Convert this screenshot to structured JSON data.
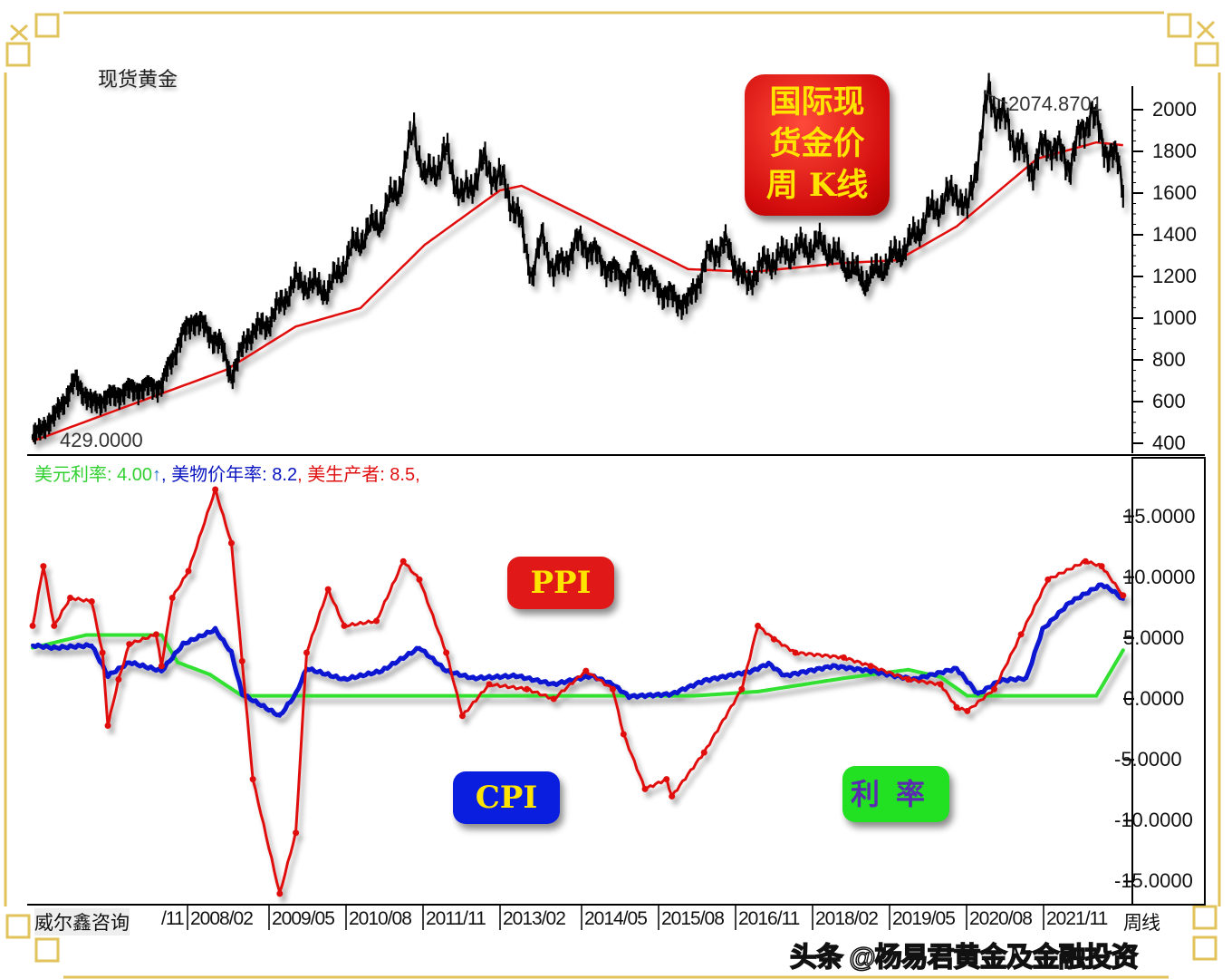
{
  "header": {
    "title": "现货黄金",
    "provider": "威尔鑫咨询",
    "watermark": "头条 @杨易君黄金及金融投资"
  },
  "labels": {
    "title_box": [
      "国际现",
      "货金价",
      "周 K线"
    ],
    "ppi_box": "PPI",
    "cpi_box": "CPI",
    "rate_box": "利率"
  },
  "legend": {
    "rate": "美元利率: 4.00",
    "rate_arrow": "↑",
    "cpi": ", 美物价年率: 8.2",
    "ppi": ", 美生产者: 8.5,"
  },
  "colors": {
    "price": "#000000",
    "ma": "#e01010",
    "rate": "#33e033",
    "cpi": "#0a14d0",
    "ppi": "#e01010",
    "frame_gold": "#e2c25a"
  },
  "chart_data": [
    {
      "type": "line",
      "title": "现货黄金",
      "ylim": [
        400,
        2000
      ],
      "yticks": [
        "2000",
        "1800",
        "1600",
        "1400",
        "1200",
        "1000",
        "800",
        "600",
        "400"
      ],
      "annotations": {
        "high": "2074.8701",
        "low": "429.0000"
      },
      "series": [
        {
          "key": "price",
          "points": [
            [
              "2005-09",
              429
            ],
            [
              "2006-01",
              526
            ],
            [
              "2006-05",
              700
            ],
            [
              "2006-08",
              591
            ],
            [
              "2007-03",
              657
            ],
            [
              "2007-09",
              678
            ],
            [
              "2007-12",
              874
            ],
            [
              "2008-03",
              1004
            ],
            [
              "2008-08",
              874
            ],
            [
              "2008-10",
              722
            ],
            [
              "2009-01",
              917
            ],
            [
              "2009-05",
              983
            ],
            [
              "2009-10",
              1178
            ],
            [
              "2010-04",
              1135
            ],
            [
              "2010-09",
              1352
            ],
            [
              "2011-02",
              1483
            ],
            [
              "2011-06",
              1678
            ],
            [
              "2011-08",
              1917
            ],
            [
              "2011-10",
              1657
            ],
            [
              "2012-02",
              1787
            ],
            [
              "2012-05",
              1570
            ],
            [
              "2012-09",
              1743
            ],
            [
              "2013-01",
              1635
            ],
            [
              "2013-04",
              1439
            ],
            [
              "2013-06",
              1200
            ],
            [
              "2013-08",
              1396
            ],
            [
              "2013-10",
              1222
            ],
            [
              "2014-03",
              1374
            ],
            [
              "2014-09",
              1222
            ],
            [
              "2014-12",
              1200
            ],
            [
              "2015-01",
              1265
            ],
            [
              "2015-07",
              1113
            ],
            [
              "2015-11",
              1070
            ],
            [
              "2016-03",
              1309
            ],
            [
              "2016-06",
              1352
            ],
            [
              "2016-10",
              1157
            ],
            [
              "2016-12",
              1243
            ],
            [
              "2017-07",
              1330
            ],
            [
              "2017-12",
              1352
            ],
            [
              "2018-08",
              1178
            ],
            [
              "2019-01",
              1287
            ],
            [
              "2019-04",
              1352
            ],
            [
              "2019-08",
              1504
            ],
            [
              "2020-01",
              1613
            ],
            [
              "2020-03",
              1504
            ],
            [
              "2020-07",
              2075
            ],
            [
              "2020-11",
              1896
            ],
            [
              "2021-03",
              1722
            ],
            [
              "2021-06",
              1852
            ],
            [
              "2021-10",
              1743
            ],
            [
              "2022-02",
              2004
            ],
            [
              "2022-04",
              1852
            ],
            [
              "2022-07",
              1743
            ],
            [
              "2022-08",
              1635
            ]
          ]
        },
        {
          "key": "ma",
          "points": [
            [
              "2005-09",
              410
            ],
            [
              "2007-04",
              591
            ],
            [
              "2008-09",
              752
            ],
            [
              "2009-10",
              960
            ],
            [
              "2010-10",
              1048
            ],
            [
              "2011-10",
              1352
            ],
            [
              "2012-12",
              1613
            ],
            [
              "2013-04",
              1635
            ],
            [
              "2014-04",
              1483
            ],
            [
              "2015-11",
              1235
            ],
            [
              "2016-11",
              1222
            ],
            [
              "2018-04",
              1265
            ],
            [
              "2019-02",
              1278
            ],
            [
              "2020-01",
              1440
            ],
            [
              "2021-04",
              1765
            ],
            [
              "2022-03",
              1843
            ],
            [
              "2022-08",
              1830
            ]
          ]
        }
      ]
    },
    {
      "type": "line",
      "ylim": [
        -15,
        15
      ],
      "yticks": [
        "15.0000",
        "10.0000",
        "5.0000",
        "0.0000",
        "-5.0000",
        "-10.0000",
        "-15.0000"
      ],
      "xticks": [
        "/11",
        "2008/02",
        "2009/05",
        "2010/08",
        "2011/11",
        "2013/02",
        "2014/05",
        "2015/08",
        "2016/11",
        "2018/02",
        "2019/05",
        "2020/08",
        "2021/11",
        "周线"
      ],
      "series": [
        {
          "key": "rate",
          "name": "美元利率",
          "points": [
            [
              "2005-09",
              4.2
            ],
            [
              "2006-07",
              5.25
            ],
            [
              "2007-09",
              5.25
            ],
            [
              "2007-12",
              3.0
            ],
            [
              "2008-06",
              2.0
            ],
            [
              "2008-12",
              0.25
            ],
            [
              "2015-12",
              0.25
            ],
            [
              "2016-12",
              0.6
            ],
            [
              "2018-04",
              1.7
            ],
            [
              "2019-04",
              2.4
            ],
            [
              "2019-10",
              1.8
            ],
            [
              "2020-03",
              0.25
            ],
            [
              "2022-03",
              0.25
            ],
            [
              "2022-08",
              4.0
            ]
          ]
        },
        {
          "key": "cpi",
          "name": "美物价年率",
          "points": [
            [
              "2005-09",
              4.4
            ],
            [
              "2006-01",
              4.2
            ],
            [
              "2006-08",
              4.4
            ],
            [
              "2006-11",
              1.9
            ],
            [
              "2007-03",
              3.0
            ],
            [
              "2007-09",
              2.3
            ],
            [
              "2008-01",
              4.5
            ],
            [
              "2008-07",
              5.7
            ],
            [
              "2008-10",
              3.8
            ],
            [
              "2008-12",
              0.4
            ],
            [
              "2009-07",
              -1.4
            ],
            [
              "2009-10",
              0.4
            ],
            [
              "2009-12",
              2.5
            ],
            [
              "2010-07",
              1.6
            ],
            [
              "2011-02",
              2.3
            ],
            [
              "2011-09",
              4.2
            ],
            [
              "2012-02",
              2.3
            ],
            [
              "2012-07",
              1.7
            ],
            [
              "2013-03",
              1.9
            ],
            [
              "2013-10",
              1.2
            ],
            [
              "2014-05",
              1.9
            ],
            [
              "2014-09",
              1.2
            ],
            [
              "2014-12",
              0.2
            ],
            [
              "2015-08",
              0.4
            ],
            [
              "2016-02",
              1.5
            ],
            [
              "2016-11",
              2.3
            ],
            [
              "2017-02",
              2.9
            ],
            [
              "2017-05",
              1.9
            ],
            [
              "2018-02",
              2.7
            ],
            [
              "2018-09",
              2.3
            ],
            [
              "2019-05",
              1.6
            ],
            [
              "2020-01",
              2.5
            ],
            [
              "2020-05",
              0.4
            ],
            [
              "2020-09",
              1.5
            ],
            [
              "2021-02",
              1.7
            ],
            [
              "2021-05",
              5.7
            ],
            [
              "2021-10",
              7.9
            ],
            [
              "2022-04",
              9.4
            ],
            [
              "2022-06",
              8.9
            ],
            [
              "2022-08",
              8.2
            ]
          ]
        },
        {
          "key": "ppi",
          "name": "美生产者",
          "points": [
            [
              "2005-09",
              6.0
            ],
            [
              "2005-11",
              10.9
            ],
            [
              "2006-01",
              6.0
            ],
            [
              "2006-04",
              8.3
            ],
            [
              "2006-08",
              8.0
            ],
            [
              "2006-10",
              3.8
            ],
            [
              "2006-11",
              -2.2
            ],
            [
              "2007-01",
              1.6
            ],
            [
              "2007-03",
              4.5
            ],
            [
              "2007-08",
              5.3
            ],
            [
              "2007-09",
              2.7
            ],
            [
              "2007-11",
              8.3
            ],
            [
              "2008-02",
              10.5
            ],
            [
              "2008-07",
              17.2
            ],
            [
              "2008-10",
              12.8
            ],
            [
              "2008-12",
              3.1
            ],
            [
              "2009-02",
              -6.6
            ],
            [
              "2009-07",
              -16.0
            ],
            [
              "2009-10",
              -11.0
            ],
            [
              "2009-12",
              3.8
            ],
            [
              "2010-04",
              9.0
            ],
            [
              "2010-07",
              6.0
            ],
            [
              "2011-01",
              6.4
            ],
            [
              "2011-06",
              11.3
            ],
            [
              "2011-09",
              9.8
            ],
            [
              "2012-02",
              3.8
            ],
            [
              "2012-05",
              -1.4
            ],
            [
              "2012-10",
              1.2
            ],
            [
              "2013-05",
              0.8
            ],
            [
              "2013-10",
              0.0
            ],
            [
              "2014-04",
              2.3
            ],
            [
              "2014-09",
              0.8
            ],
            [
              "2014-11",
              -2.9
            ],
            [
              "2015-03",
              -7.4
            ],
            [
              "2015-07",
              -6.6
            ],
            [
              "2015-08",
              -8.0
            ],
            [
              "2016-02",
              -4.4
            ],
            [
              "2016-09",
              0.8
            ],
            [
              "2016-12",
              6.0
            ],
            [
              "2017-03",
              4.9
            ],
            [
              "2017-07",
              3.8
            ],
            [
              "2018-04",
              3.4
            ],
            [
              "2018-09",
              2.7
            ],
            [
              "2019-04",
              1.6
            ],
            [
              "2019-10",
              1.2
            ],
            [
              "2020-01",
              -0.7
            ],
            [
              "2020-03",
              -1.0
            ],
            [
              "2020-08",
              0.8
            ],
            [
              "2021-01",
              5.3
            ],
            [
              "2021-06",
              9.8
            ],
            [
              "2022-01",
              11.3
            ],
            [
              "2022-04",
              10.9
            ],
            [
              "2022-08",
              8.5
            ]
          ]
        }
      ]
    }
  ]
}
